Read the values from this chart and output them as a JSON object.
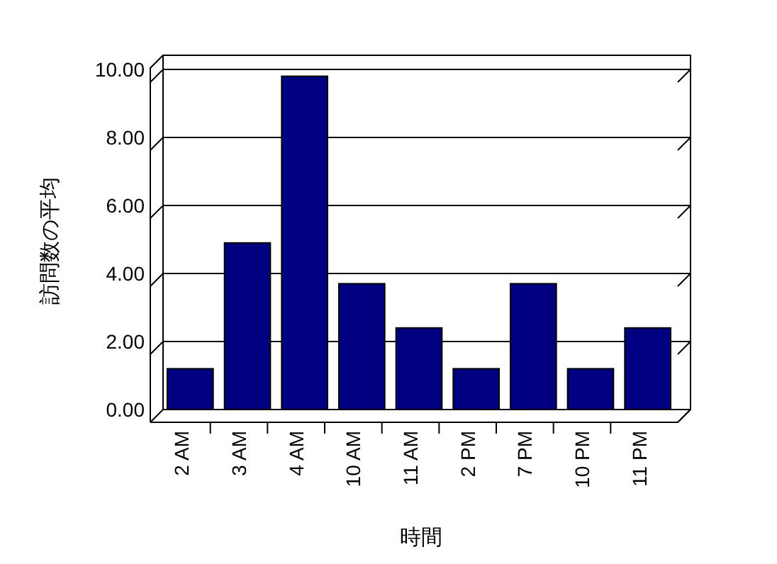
{
  "chart_data": {
    "type": "bar",
    "xlabel": "時間",
    "ylabel": "訪問数の平均",
    "categories": [
      "2 AM",
      "3 AM",
      "4 AM",
      "10 AM",
      "11 AM",
      "2 PM",
      "7 PM",
      "10 PM",
      "11 PM"
    ],
    "values": [
      1.2,
      4.9,
      9.8,
      3.7,
      2.4,
      1.2,
      3.7,
      1.2,
      2.4
    ],
    "color": "#000080",
    "ylim": [
      0,
      10
    ],
    "yticks": [
      {
        "value": 0,
        "label": "0.00"
      },
      {
        "value": 2,
        "label": "2.00"
      },
      {
        "value": 4,
        "label": "4.00"
      },
      {
        "value": 6,
        "label": "6.00"
      },
      {
        "value": 8,
        "label": "8.00"
      },
      {
        "value": 10,
        "label": "10.00"
      }
    ],
    "grid": "y"
  }
}
